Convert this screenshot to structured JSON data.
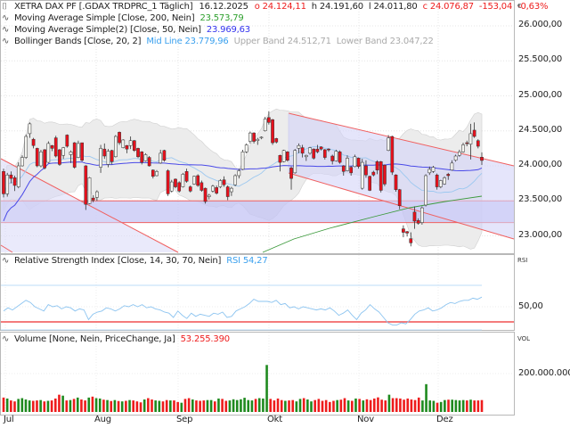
{
  "header": {
    "instrument": "XETRA DAX PF [.GDAX TRDPRC_1 Täglich]",
    "date": "16.12.2025",
    "open": "o 24.124,11",
    "high": "h 24.191,60",
    "low": "l 24.011,80",
    "close": "c 24.076,87",
    "change": "-153,04",
    "change_pct": "-0,63%"
  },
  "indicators": {
    "ma200": {
      "label": "Moving Average Simple  [Close, 200, Nein]",
      "value": "23.573,79",
      "color": "#2ea02e"
    },
    "ma50": {
      "label": "Moving Average Simple(2)  [Close, 50, Nein]",
      "value": "23.969,63",
      "color": "#3333ee"
    },
    "bollinger": {
      "label": "Bollinger Bands  [Close, 20, 2]",
      "mid": "Mid Line 23.779,96",
      "upper": "Upper Band 24.512,71",
      "lower": "Lower Band 23.047,22"
    },
    "rsi": {
      "label": "Relative Strength Index  [Close, 14, 30, 70, Nein]",
      "value": "RSI 54,27"
    },
    "volume": {
      "label": "Volume  [None, Nein, PriceChange, Ja]",
      "value": "53.255.390"
    }
  },
  "axes": {
    "currency": "€",
    "price_ticks": [
      "26.000,00",
      "25.500,00",
      "25.000,00",
      "24.500,00",
      "24.000,00",
      "23.500,00",
      "23.000,00"
    ],
    "rsi_label": "RSI",
    "rsi_ticks": [
      "50,00"
    ],
    "vol_label": "VOL",
    "vol_ticks": [
      "200.000.000"
    ],
    "months": [
      "Jul",
      "Aug",
      "Sep",
      "Okt",
      "Nov",
      "Dez"
    ]
  },
  "colors": {
    "up": "#f4f4f0",
    "down": "#e8101c",
    "vol_up": "#1f8a1f",
    "vol_down": "#ee1c1c",
    "bollinger_fill": "#ececec",
    "channel_fill": "#d8d8f8",
    "channel_line": "#f06060",
    "ma200": "#3c9a3c",
    "ma50": "#4a4ae8",
    "mid": "#9cc8f0",
    "rsi_line": "#8cc4f0",
    "rsi_red": "#f05050"
  },
  "chart_data": {
    "type": "candlestick",
    "title": "XETRA DAX PF [.GDAX TRDPRC_1 Täglich] 16.12.2025",
    "xlabel": "",
    "ylabel": "€",
    "ylim": [
      22800,
      26300
    ],
    "x_ticks": [
      "Jul",
      "Aug",
      "Sep",
      "Okt",
      "Nov",
      "Dez"
    ],
    "last": {
      "open": 24124.11,
      "high": 24191.6,
      "low": 24011.8,
      "close": 24076.87,
      "change": -153.04,
      "change_pct": -0.63
    },
    "candles": [
      [
        23920,
        23960,
        23550,
        23600
      ],
      [
        23600,
        23900,
        23560,
        23870
      ],
      [
        23870,
        23920,
        23750,
        23820
      ],
      [
        23830,
        23860,
        23640,
        23720
      ],
      [
        23700,
        24050,
        23680,
        24000
      ],
      [
        24000,
        24150,
        23990,
        24120
      ],
      [
        24120,
        24450,
        24100,
        24420
      ],
      [
        24460,
        24620,
        24400,
        24600
      ],
      [
        24380,
        24400,
        24250,
        24290
      ],
      [
        24250,
        24260,
        23980,
        24000
      ],
      [
        24000,
        24230,
        23980,
        24200
      ],
      [
        24230,
        24240,
        23950,
        23970
      ],
      [
        24050,
        24350,
        24040,
        24320
      ],
      [
        24290,
        24300,
        24210,
        24250
      ],
      [
        24400,
        24430,
        24120,
        24140
      ],
      [
        24230,
        24240,
        24000,
        24020
      ],
      [
        24150,
        24270,
        24100,
        24260
      ],
      [
        24440,
        24450,
        24260,
        24280
      ],
      [
        24160,
        24220,
        24040,
        24200
      ],
      [
        24330,
        24340,
        23960,
        23980
      ],
      [
        24120,
        24360,
        24110,
        24320
      ],
      [
        24330,
        24330,
        24060,
        24080
      ],
      [
        24000,
        24010,
        23370,
        23450
      ],
      [
        23460,
        23840,
        23450,
        23830
      ],
      [
        23540,
        23580,
        23480,
        23510
      ],
      [
        23550,
        23650,
        23500,
        23630
      ],
      [
        23980,
        24300,
        23900,
        24250
      ],
      [
        24240,
        24320,
        24100,
        24140
      ],
      [
        24020,
        24240,
        23980,
        24210
      ],
      [
        24220,
        24230,
        24020,
        24060
      ],
      [
        24130,
        24440,
        24120,
        24420
      ],
      [
        24480,
        24490,
        24300,
        24330
      ],
      [
        24260,
        24380,
        24250,
        24370
      ],
      [
        24290,
        24300,
        24180,
        24240
      ],
      [
        24290,
        24420,
        24240,
        24360
      ],
      [
        24360,
        24370,
        24200,
        24220
      ],
      [
        24250,
        24260,
        24110,
        24130
      ],
      [
        24200,
        24210,
        24020,
        24050
      ],
      [
        24070,
        24180,
        24060,
        24160
      ],
      [
        24120,
        24140,
        23990,
        24000
      ],
      [
        23940,
        23950,
        23820,
        23850
      ],
      [
        23860,
        23940,
        23850,
        23920
      ],
      [
        24040,
        24230,
        24030,
        24180
      ],
      [
        24220,
        24230,
        24060,
        24080
      ],
      [
        23930,
        23950,
        23570,
        23600
      ],
      [
        23640,
        23800,
        23620,
        23770
      ],
      [
        23810,
        23820,
        23680,
        23700
      ],
      [
        23760,
        23780,
        23620,
        23640
      ],
      [
        23700,
        23900,
        23690,
        23880
      ],
      [
        23920,
        23960,
        23760,
        23780
      ],
      [
        23700,
        23720,
        23620,
        23640
      ],
      [
        23740,
        23860,
        23730,
        23850
      ],
      [
        23860,
        23880,
        23700,
        23720
      ],
      [
        23760,
        23790,
        23630,
        23650
      ],
      [
        23680,
        23690,
        23460,
        23490
      ],
      [
        23560,
        23600,
        23520,
        23580
      ],
      [
        23640,
        23730,
        23620,
        23710
      ],
      [
        23690,
        23720,
        23590,
        23610
      ],
      [
        23700,
        23810,
        23680,
        23790
      ],
      [
        23800,
        23850,
        23700,
        23730
      ],
      [
        23700,
        23720,
        23510,
        23560
      ],
      [
        23630,
        23700,
        23570,
        23680
      ],
      [
        23730,
        23880,
        23710,
        23860
      ],
      [
        23860,
        23960,
        23820,
        23930
      ],
      [
        23950,
        24230,
        23940,
        24200
      ],
      [
        24200,
        24320,
        24180,
        24300
      ],
      [
        24350,
        24490,
        24320,
        24470
      ],
      [
        24470,
        24480,
        24320,
        24350
      ],
      [
        24360,
        24400,
        24300,
        24380
      ],
      [
        24400,
        24420,
        24380,
        24410
      ],
      [
        24500,
        24700,
        24490,
        24670
      ],
      [
        24690,
        24780,
        24590,
        24620
      ],
      [
        24660,
        24670,
        24300,
        24330
      ],
      [
        24390,
        24400,
        24320,
        24340
      ],
      [
        24150,
        24160,
        23920,
        24050
      ],
      [
        24060,
        24230,
        24050,
        24220
      ],
      [
        24200,
        24210,
        24060,
        24080
      ],
      [
        23970,
        23990,
        23660,
        23820
      ],
      [
        23900,
        24240,
        23890,
        24220
      ],
      [
        24250,
        24320,
        24180,
        24290
      ],
      [
        24260,
        24300,
        24120,
        24180
      ],
      [
        24130,
        24160,
        24070,
        24150
      ],
      [
        24180,
        24270,
        24160,
        24260
      ],
      [
        24240,
        24250,
        24090,
        24110
      ],
      [
        24240,
        24300,
        24180,
        24200
      ],
      [
        24270,
        24280,
        24220,
        24240
      ],
      [
        24230,
        24240,
        24090,
        24120
      ],
      [
        24240,
        24250,
        24200,
        24230
      ],
      [
        24140,
        24160,
        24020,
        24070
      ],
      [
        24070,
        24230,
        24060,
        24210
      ],
      [
        24200,
        24220,
        24030,
        24050
      ],
      [
        24000,
        24010,
        23860,
        23920
      ],
      [
        23930,
        24150,
        23920,
        24110
      ],
      [
        23980,
        24000,
        23860,
        23900
      ],
      [
        23990,
        24160,
        23980,
        24130
      ],
      [
        24110,
        24120,
        23960,
        23990
      ],
      [
        23680,
        24100,
        23660,
        24050
      ],
      [
        24000,
        24080,
        23830,
        23870
      ],
      [
        23850,
        23860,
        23640,
        23650
      ],
      [
        23910,
        23930,
        23850,
        23870
      ],
      [
        24060,
        24080,
        23880,
        23940
      ],
      [
        24060,
        24070,
        23620,
        23650
      ],
      [
        24010,
        24020,
        23710,
        23740
      ],
      [
        24220,
        24440,
        24210,
        24400
      ],
      [
        24420,
        24430,
        23870,
        23910
      ],
      [
        23870,
        23880,
        23630,
        23660
      ],
      [
        23660,
        23670,
        23380,
        23430
      ],
      [
        23100,
        23150,
        22980,
        23050
      ],
      [
        23060,
        23070,
        22990,
        23040
      ],
      [
        22960,
        23050,
        22850,
        22900
      ],
      [
        23340,
        23420,
        23100,
        23210
      ],
      [
        23220,
        23250,
        23160,
        23180
      ],
      [
        23190,
        23420,
        23160,
        23400
      ],
      [
        23440,
        23880,
        23420,
        23860
      ],
      [
        23900,
        23990,
        23870,
        23950
      ],
      [
        23920,
        24000,
        23900,
        23980
      ],
      [
        23870,
        23890,
        23660,
        23700
      ],
      [
        23700,
        23800,
        23680,
        23790
      ],
      [
        23740,
        23850,
        23730,
        23830
      ],
      [
        23880,
        23900,
        23800,
        23860
      ],
      [
        23940,
        24080,
        23930,
        24040
      ],
      [
        24080,
        24160,
        24060,
        24140
      ],
      [
        24150,
        24230,
        24130,
        24200
      ],
      [
        24200,
        24330,
        24190,
        24300
      ],
      [
        24330,
        24360,
        24280,
        24320
      ],
      [
        24310,
        24600,
        24090,
        24460
      ],
      [
        24510,
        24620,
        24400,
        24420
      ],
      [
        24360,
        24380,
        24250,
        24280
      ],
      [
        24124,
        24192,
        24012,
        24077
      ]
    ],
    "volume_millions": [
      75,
      70,
      60,
      55,
      68,
      72,
      65,
      60,
      58,
      60,
      62,
      55,
      58,
      60,
      70,
      90,
      85,
      60,
      62,
      68,
      75,
      65,
      60,
      75,
      80,
      72,
      70,
      64,
      62,
      57,
      62,
      57,
      55,
      58,
      62,
      60,
      55,
      50,
      65,
      72,
      65,
      60,
      58,
      55,
      62,
      60,
      60,
      52,
      48,
      68,
      72,
      65,
      60,
      58,
      60,
      62,
      62,
      55,
      70,
      68,
      58,
      60,
      66,
      62,
      66,
      74,
      62,
      60,
      68,
      72,
      70,
      245,
      68,
      60,
      70,
      62,
      58,
      60,
      62,
      55,
      68,
      72,
      65,
      55,
      62,
      68,
      58,
      62,
      52,
      58,
      62,
      64,
      72,
      60,
      58,
      70,
      68,
      60,
      66,
      62,
      70,
      76,
      64,
      60,
      90,
      72,
      72,
      70,
      64,
      70,
      65,
      62,
      75,
      60,
      145,
      60,
      58,
      48,
      52,
      62,
      64,
      64,
      62,
      60,
      62,
      60,
      64,
      60,
      60,
      62
    ],
    "rsi_values": [
      46,
      49,
      47,
      50,
      53,
      56,
      54,
      50,
      48,
      46,
      52,
      50,
      51,
      48,
      50,
      49,
      46,
      48,
      47,
      38,
      43,
      45,
      46,
      49,
      48,
      46,
      48,
      51,
      50,
      52,
      50,
      52,
      49,
      50,
      48,
      47,
      45,
      44,
      40,
      46,
      42,
      39,
      44,
      41,
      43,
      42,
      41,
      44,
      43,
      45,
      40,
      41,
      46,
      48,
      50,
      53,
      57,
      55,
      55,
      55,
      54,
      56,
      52,
      53,
      49,
      50,
      48,
      50,
      49,
      48,
      47,
      48,
      47,
      49,
      46,
      42,
      44,
      47,
      42,
      38,
      44,
      47,
      52,
      48,
      45,
      40,
      35,
      33,
      33,
      35,
      34,
      38,
      43,
      46,
      47,
      49,
      46,
      47,
      49,
      52,
      54,
      53,
      55,
      56,
      56,
      58,
      57,
      59
    ],
    "bollinger": {
      "upper_approx_end": 24512.71,
      "mid_end": 23779.96,
      "lower_end": 23047.22
    },
    "ma50_end": 23969.63,
    "ma200_end": 23573.79,
    "support_zone": [
      23190,
      23500
    ],
    "channels": [
      {
        "name": "descending-channel-right",
        "upper": [
          [
            24760,
            73
          ],
          [
            24010,
            137
          ]
        ],
        "lower": [
          [
            24000,
            73
          ],
          [
            23050,
            137
          ]
        ]
      },
      {
        "name": "descending-line-left",
        "points": [
          [
            24050,
            0
          ],
          [
            23060,
            55
          ]
        ]
      }
    ]
  }
}
